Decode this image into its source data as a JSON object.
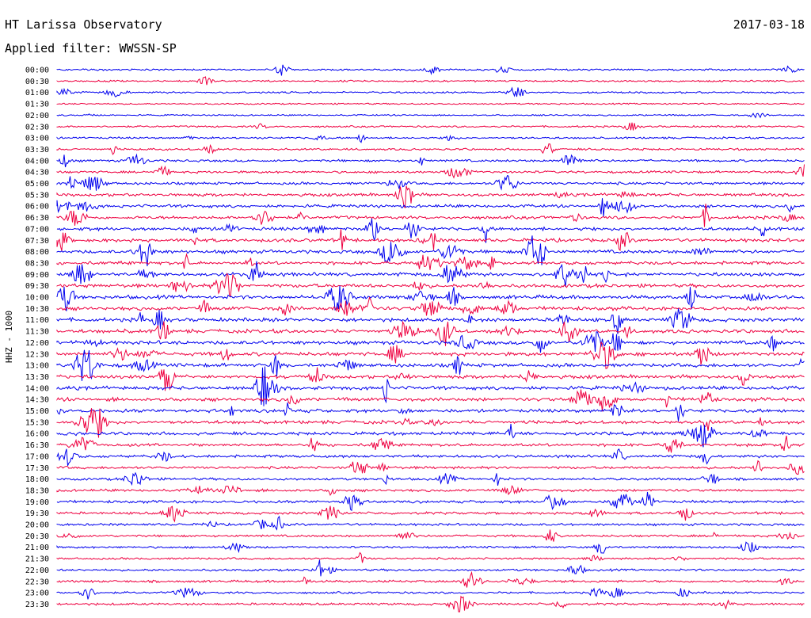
{
  "chart_data": {
    "type": "line",
    "title": "HT Larissa Observatory",
    "date": "2017-03-18",
    "subtitle": "Applied filter: WWSSN-SP",
    "ylabel": "HHZ - 1000",
    "trace_colors": [
      "#0000ee",
      "#ee0040"
    ],
    "rows": [
      "00:00",
      "00:30",
      "01:00",
      "01:30",
      "02:00",
      "02:30",
      "03:00",
      "03:30",
      "04:00",
      "04:30",
      "05:00",
      "05:30",
      "06:00",
      "06:30",
      "07:00",
      "07:30",
      "08:00",
      "08:30",
      "09:00",
      "09:30",
      "10:00",
      "10:30",
      "11:00",
      "11:30",
      "12:00",
      "12:30",
      "13:00",
      "13:30",
      "14:00",
      "14:30",
      "15:00",
      "15:30",
      "16:00",
      "16:30",
      "17:00",
      "17:30",
      "18:00",
      "18:30",
      "19:00",
      "19:30",
      "20:00",
      "20:30",
      "21:00",
      "21:30",
      "22:00",
      "22:30",
      "23:00",
      "23:30"
    ],
    "activity": [
      0.6,
      0.5,
      0.6,
      0.3,
      0.3,
      0.6,
      0.7,
      0.8,
      1.0,
      1.0,
      1.2,
      1.5,
      1.5,
      1.6,
      1.8,
      1.8,
      1.8,
      1.7,
      1.9,
      1.9,
      2.0,
      2.0,
      2.0,
      2.0,
      2.0,
      2.0,
      1.9,
      1.9,
      1.9,
      1.9,
      1.8,
      1.8,
      1.6,
      1.4,
      1.3,
      1.2,
      1.1,
      1.2,
      1.3,
      1.1,
      1.0,
      0.9,
      0.8,
      0.7,
      0.9,
      1.0,
      0.8,
      1.0
    ]
  }
}
